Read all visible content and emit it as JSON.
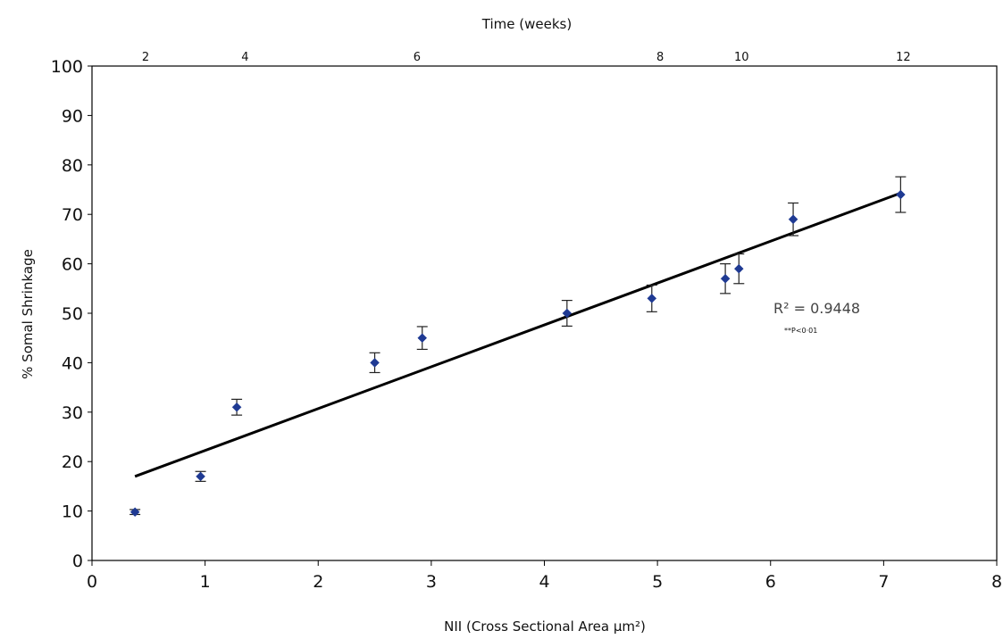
{
  "chart_data": {
    "type": "scatter",
    "title": "",
    "xlabel": "NII (Cross Sectional Area µm²)",
    "ylabel": "% Somal Shrinkage",
    "top_axis_label": "Time (weeks)",
    "xlim": [
      0,
      8
    ],
    "ylim": [
      0,
      100
    ],
    "x_ticks": [
      "0",
      "1",
      "2",
      "3",
      "4",
      "5",
      "6",
      "7",
      "8"
    ],
    "y_ticks": [
      "0",
      "10",
      "20",
      "30",
      "40",
      "50",
      "60",
      "70",
      "80",
      "90",
      "100"
    ],
    "top_ticks": [
      {
        "label": "2",
        "x": 0.45
      },
      {
        "label": "4",
        "x": 1.33
      },
      {
        "label": "6",
        "x": 2.85
      },
      {
        "label": "8",
        "x": 5.0
      },
      {
        "label": "10",
        "x": 5.72
      },
      {
        "label": "12",
        "x": 7.15
      }
    ],
    "grid": false,
    "legend": "none",
    "series": [
      {
        "color": "#1f3a93",
        "marker": "diamond",
        "points": [
          {
            "x": 0.38,
            "y": 9.8,
            "err": 0.5
          },
          {
            "x": 0.96,
            "y": 17,
            "err": 1
          },
          {
            "x": 1.28,
            "y": 31,
            "err": 1.6
          },
          {
            "x": 2.5,
            "y": 40,
            "err": 2
          },
          {
            "x": 2.92,
            "y": 45,
            "err": 2.3
          },
          {
            "x": 4.2,
            "y": 50,
            "err": 2.6
          },
          {
            "x": 4.95,
            "y": 53,
            "err": 2.7
          },
          {
            "x": 5.6,
            "y": 57,
            "err": 3
          },
          {
            "x": 5.72,
            "y": 59,
            "err": 3
          },
          {
            "x": 6.2,
            "y": 69,
            "err": 3.3
          },
          {
            "x": 7.15,
            "y": 74,
            "err": 3.6
          }
        ]
      }
    ],
    "trendline": {
      "x_start": 0.38,
      "y_start": 17,
      "x_end": 7.15,
      "y_end": 74.3,
      "color": "#000000"
    },
    "annotations": {
      "r2": "R² = 0.9448",
      "p": "**P<0·01"
    }
  }
}
